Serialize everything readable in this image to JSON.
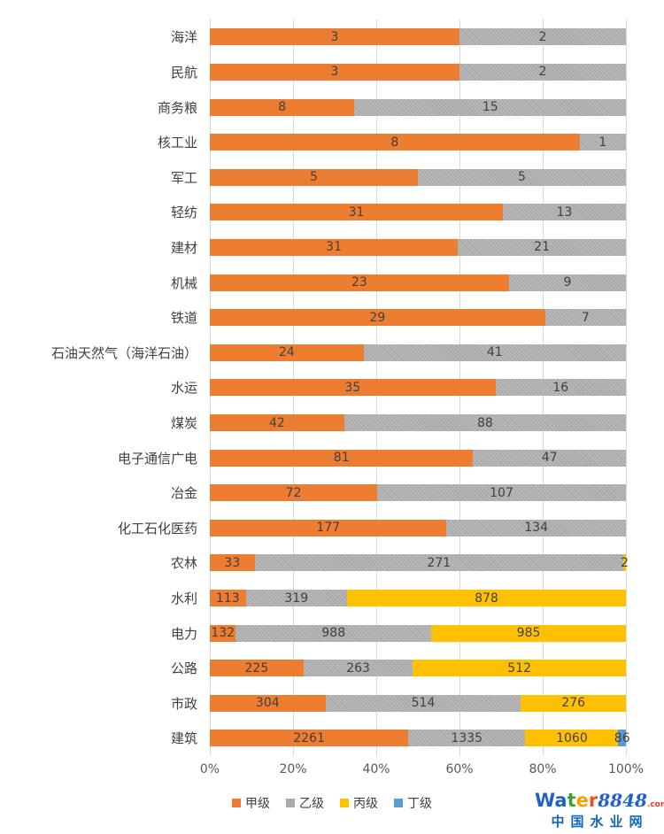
{
  "page": {
    "background": "#ffffff"
  },
  "chart_data": {
    "type": "bar",
    "orientation": "horizontal",
    "stacked": "100%",
    "title": "",
    "xlabel": "",
    "ylabel": "",
    "xlim": [
      0,
      100
    ],
    "grid": "vertical",
    "gridline_color": "#d9d9d9",
    "legend_position": "bottom",
    "value_label_color": "#404040",
    "x_ticks": [
      "0%",
      "20%",
      "40%",
      "60%",
      "80%",
      "100%"
    ],
    "x_tick_percents": [
      0,
      20,
      40,
      60,
      80,
      100
    ],
    "categories": [
      "海洋",
      "民航",
      "商务粮",
      "核工业",
      "军工",
      "轻纺",
      "建材",
      "机械",
      "铁道",
      "石油天然气（海洋石油）",
      "水运",
      "煤炭",
      "电子通信广电",
      "冶金",
      "化工石化医药",
      "农林",
      "水利",
      "电力",
      "公路",
      "市政",
      "建筑"
    ],
    "series": [
      {
        "name": "甲级",
        "color": "#ED7D31",
        "hatch": false,
        "values": [
          3,
          3,
          8,
          8,
          5,
          31,
          31,
          23,
          29,
          24,
          35,
          42,
          81,
          72,
          177,
          33,
          113,
          132,
          225,
          304,
          2261
        ]
      },
      {
        "name": "乙级",
        "color": "#AAAAAA",
        "hatch": true,
        "values": [
          2,
          2,
          15,
          1,
          5,
          13,
          21,
          9,
          7,
          41,
          16,
          88,
          47,
          107,
          134,
          271,
          319,
          988,
          263,
          514,
          1335
        ]
      },
      {
        "name": "丙级",
        "color": "#FFC000",
        "hatch": false,
        "values": [
          0,
          0,
          0,
          0,
          0,
          0,
          0,
          0,
          0,
          0,
          0,
          0,
          0,
          0,
          0,
          2,
          878,
          985,
          512,
          276,
          1060
        ]
      },
      {
        "name": "丁级",
        "color": "#5B9BD5",
        "hatch": false,
        "values": [
          0,
          0,
          0,
          0,
          0,
          0,
          0,
          0,
          0,
          0,
          0,
          0,
          0,
          0,
          0,
          0,
          0,
          0,
          0,
          0,
          86
        ]
      }
    ]
  },
  "watermark": {
    "brand_parts": [
      {
        "text": "W",
        "color": "#1f61c8"
      },
      {
        "text": "a",
        "color": "#1f61c8"
      },
      {
        "text": "t",
        "color": "#3aa335"
      },
      {
        "text": "e",
        "color": "#f5a100"
      },
      {
        "text": "r",
        "color": "#e8541d"
      }
    ],
    "number": "8848",
    "number_color": "#1f61c8",
    "tld": ".com",
    "tld_color": "#e53935",
    "subtitle": "中国水业网",
    "subtitle_color": "#1565c0"
  }
}
